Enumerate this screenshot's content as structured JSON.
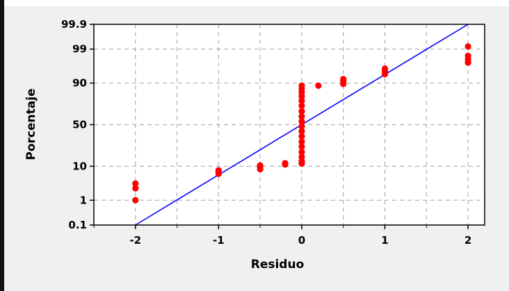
{
  "chart_data": {
    "type": "scatter",
    "subtype": "normal-probability-plot",
    "title": "",
    "xlabel": "Residuo",
    "ylabel": "Porcentaje",
    "x_ticks": [
      "-2",
      "-1",
      "0",
      "1",
      "2"
    ],
    "y_ticks": [
      "0.1",
      "1",
      "10",
      "50",
      "90",
      "99",
      "99.9"
    ],
    "xlim": [
      -2.5,
      2.2
    ],
    "ylim_percent": [
      0.1,
      99.9
    ],
    "y_scale": "normal-probability",
    "grid": true,
    "grid_style": "dashed",
    "series": [
      {
        "kind": "points",
        "color": "#ff0000",
        "points": [
          {
            "x": -2,
            "y": 1.0
          },
          {
            "x": -2,
            "y": 2.5
          },
          {
            "x": -2,
            "y": 3.5
          },
          {
            "x": -1,
            "y": 6.5
          },
          {
            "x": -1,
            "y": 7.5
          },
          {
            "x": -1,
            "y": 8.0
          },
          {
            "x": -0.5,
            "y": 8.5
          },
          {
            "x": -0.5,
            "y": 9.5
          },
          {
            "x": -0.5,
            "y": 10.5
          },
          {
            "x": -0.2,
            "y": 11.0
          },
          {
            "x": -0.2,
            "y": 11.8
          },
          {
            "x": 0,
            "y": 11.5
          },
          {
            "x": 0,
            "y": 13
          },
          {
            "x": 0,
            "y": 16
          },
          {
            "x": 0,
            "y": 20
          },
          {
            "x": 0,
            "y": 25
          },
          {
            "x": 0,
            "y": 30
          },
          {
            "x": 0,
            "y": 36
          },
          {
            "x": 0,
            "y": 42
          },
          {
            "x": 0,
            "y": 48
          },
          {
            "x": 0,
            "y": 54
          },
          {
            "x": 0,
            "y": 60
          },
          {
            "x": 0,
            "y": 66
          },
          {
            "x": 0,
            "y": 72
          },
          {
            "x": 0,
            "y": 77
          },
          {
            "x": 0,
            "y": 81
          },
          {
            "x": 0,
            "y": 84
          },
          {
            "x": 0,
            "y": 86.5
          },
          {
            "x": 0,
            "y": 88.5
          },
          {
            "x": 0.2,
            "y": 88.5
          },
          {
            "x": 0.5,
            "y": 89.5
          },
          {
            "x": 0.5,
            "y": 91
          },
          {
            "x": 0.5,
            "y": 92
          },
          {
            "x": 1,
            "y": 94
          },
          {
            "x": 1,
            "y": 95
          },
          {
            "x": 1,
            "y": 95.8
          },
          {
            "x": 2,
            "y": 97.2
          },
          {
            "x": 2,
            "y": 97.8
          },
          {
            "x": 2,
            "y": 98.3
          },
          {
            "x": 2,
            "y": 99.2
          }
        ]
      },
      {
        "kind": "fitted-line",
        "color": "#0000ff",
        "from": {
          "x": -2,
          "y": 0.1
        },
        "to": {
          "x": 2,
          "y": 99.9
        }
      }
    ]
  }
}
